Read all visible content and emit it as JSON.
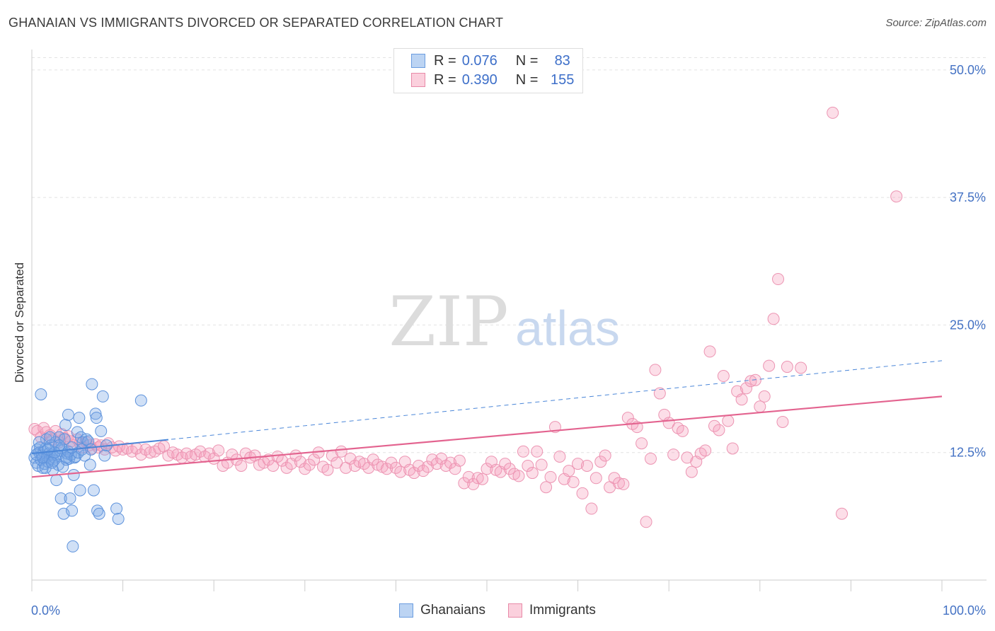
{
  "title": "GHANAIAN VS IMMIGRANTS DIVORCED OR SEPARATED CORRELATION CHART",
  "source": "Source: ZipAtlas.com",
  "watermark": {
    "zip": "ZIP",
    "atlas": "atlas"
  },
  "legend": {
    "rows": [
      {
        "r_label": "R =",
        "r_value": "0.076",
        "n_label": "N =",
        "n_value": "83",
        "color": "#a9c8f0",
        "border": "#6b9de0"
      },
      {
        "r_label": "R =",
        "r_value": "0.390",
        "n_label": "N =",
        "n_value": "155",
        "color": "#f9c3d3",
        "border": "#e88aa8"
      }
    ]
  },
  "bottom_legend": {
    "ghanaians": "Ghanaians",
    "immigrants": "Immigrants"
  },
  "colors": {
    "blue": "#4a86d8",
    "pink": "#e3638f",
    "blue_fill": "rgba(120,165,230,0.35)",
    "pink_fill": "rgba(245,160,190,0.35)",
    "axis_text": "#4472c4"
  },
  "chart_data": {
    "type": "scatter",
    "title": "GHANAIAN VS IMMIGRANTS DIVORCED OR SEPARATED CORRELATION CHART",
    "xlabel": "",
    "ylabel": "Divorced or Separated",
    "xlim": [
      0,
      100
    ],
    "ylim": [
      0,
      52
    ],
    "x_tick_labels": [
      "0.0%",
      "100.0%"
    ],
    "y_ticks": [
      12.5,
      25.0,
      37.5,
      50.0
    ],
    "y_tick_labels": [
      "12.5%",
      "25.0%",
      "37.5%",
      "50.0%"
    ],
    "grid": true,
    "series": [
      {
        "name": "Ghanaians",
        "trend": {
          "x": [
            0,
            100
          ],
          "y": [
            12.4,
            21.5
          ],
          "style": "dashed"
        },
        "points": [
          [
            0.3,
            12.0
          ],
          [
            0.5,
            11.5
          ],
          [
            0.6,
            12.8
          ],
          [
            0.7,
            11.2
          ],
          [
            0.8,
            12.5
          ],
          [
            0.9,
            13.0
          ],
          [
            1.0,
            11.8
          ],
          [
            1.1,
            12.2
          ],
          [
            1.2,
            11.0
          ],
          [
            1.3,
            12.6
          ],
          [
            1.4,
            11.4
          ],
          [
            1.5,
            12.9
          ],
          [
            1.6,
            13.8
          ],
          [
            1.7,
            12.1
          ],
          [
            1.8,
            11.6
          ],
          [
            1.9,
            12.4
          ],
          [
            2.0,
            11.9
          ],
          [
            2.1,
            13.2
          ],
          [
            2.2,
            12.3
          ],
          [
            2.3,
            10.8
          ],
          [
            2.4,
            11.7
          ],
          [
            2.5,
            12.0
          ],
          [
            2.6,
            13.5
          ],
          [
            2.7,
            9.8
          ],
          [
            2.8,
            12.2
          ],
          [
            2.9,
            11.3
          ],
          [
            3.0,
            14.0
          ],
          [
            3.1,
            12.7
          ],
          [
            3.2,
            8.0
          ],
          [
            3.3,
            12.9
          ],
          [
            3.4,
            11.1
          ],
          [
            3.5,
            6.5
          ],
          [
            3.6,
            13.8
          ],
          [
            3.7,
            15.2
          ],
          [
            3.8,
            11.8
          ],
          [
            3.9,
            12.4
          ],
          [
            4.0,
            16.2
          ],
          [
            4.1,
            11.9
          ],
          [
            4.2,
            8.0
          ],
          [
            4.3,
            12.3
          ],
          [
            4.4,
            6.8
          ],
          [
            4.5,
            3.3
          ],
          [
            4.6,
            10.3
          ],
          [
            4.7,
            12.0
          ],
          [
            4.8,
            12.1
          ],
          [
            5.0,
            14.5
          ],
          [
            5.1,
            12.5
          ],
          [
            5.2,
            15.9
          ],
          [
            5.3,
            8.8
          ],
          [
            5.4,
            14.0
          ],
          [
            5.6,
            13.5
          ],
          [
            5.8,
            12.2
          ],
          [
            6.0,
            13.8
          ],
          [
            6.2,
            13.6
          ],
          [
            6.4,
            11.3
          ],
          [
            6.6,
            19.2
          ],
          [
            6.8,
            8.8
          ],
          [
            7.0,
            16.3
          ],
          [
            7.1,
            15.9
          ],
          [
            7.2,
            6.8
          ],
          [
            7.4,
            6.5
          ],
          [
            7.6,
            14.6
          ],
          [
            7.8,
            18.0
          ],
          [
            8.0,
            12.2
          ],
          [
            8.2,
            13.2
          ],
          [
            9.3,
            7.0
          ],
          [
            9.5,
            6.0
          ],
          [
            12.0,
            17.6
          ],
          [
            1.0,
            18.2
          ],
          [
            2.0,
            14.0
          ],
          [
            3.0,
            13.2
          ],
          [
            4.0,
            12.6
          ],
          [
            6.5,
            12.8
          ],
          [
            1.5,
            11.0
          ],
          [
            2.5,
            12.5
          ],
          [
            0.8,
            13.5
          ],
          [
            1.2,
            12.0
          ],
          [
            3.8,
            12.0
          ],
          [
            4.4,
            13.0
          ],
          [
            5.5,
            12.8
          ],
          [
            2.2,
            11.5
          ],
          [
            1.8,
            12.8
          ],
          [
            0.5,
            12.3
          ]
        ]
      },
      {
        "name": "Immigrants",
        "trend": {
          "x": [
            0,
            100
          ],
          "y": [
            10.1,
            18.0
          ],
          "style": "solid"
        },
        "points": [
          [
            0.3,
            14.8
          ],
          [
            0.6,
            14.6
          ],
          [
            1.0,
            14.0
          ],
          [
            1.3,
            14.9
          ],
          [
            1.6,
            14.5
          ],
          [
            2.0,
            14.2
          ],
          [
            2.3,
            13.8
          ],
          [
            2.6,
            14.6
          ],
          [
            3.0,
            13.5
          ],
          [
            3.3,
            14.3
          ],
          [
            3.6,
            13.9
          ],
          [
            4.0,
            14.1
          ],
          [
            4.3,
            13.6
          ],
          [
            4.6,
            13.2
          ],
          [
            5.0,
            13.8
          ],
          [
            5.3,
            13.4
          ],
          [
            5.6,
            13.0
          ],
          [
            6.0,
            13.5
          ],
          [
            6.3,
            13.2
          ],
          [
            6.6,
            12.9
          ],
          [
            7.0,
            13.3
          ],
          [
            7.3,
            13.0
          ],
          [
            7.6,
            13.2
          ],
          [
            8.0,
            12.8
          ],
          [
            8.4,
            13.4
          ],
          [
            8.8,
            13.0
          ],
          [
            9.2,
            12.7
          ],
          [
            9.6,
            13.1
          ],
          [
            10.0,
            12.8
          ],
          [
            10.5,
            12.9
          ],
          [
            11.0,
            12.6
          ],
          [
            11.5,
            12.9
          ],
          [
            12.0,
            12.3
          ],
          [
            12.5,
            12.8
          ],
          [
            13.0,
            12.5
          ],
          [
            13.5,
            12.6
          ],
          [
            14.0,
            12.9
          ],
          [
            14.5,
            13.1
          ],
          [
            15.0,
            12.2
          ],
          [
            15.5,
            12.5
          ],
          [
            16.0,
            12.3
          ],
          [
            16.5,
            12.0
          ],
          [
            17.0,
            12.4
          ],
          [
            17.5,
            12.1
          ],
          [
            18.0,
            12.3
          ],
          [
            18.5,
            12.6
          ],
          [
            19.0,
            12.1
          ],
          [
            19.5,
            12.4
          ],
          [
            20.0,
            11.9
          ],
          [
            20.5,
            12.7
          ],
          [
            21.0,
            11.2
          ],
          [
            21.5,
            11.5
          ],
          [
            22.0,
            12.3
          ],
          [
            22.5,
            11.8
          ],
          [
            23.0,
            11.2
          ],
          [
            23.5,
            12.4
          ],
          [
            24.0,
            12.0
          ],
          [
            24.5,
            12.2
          ],
          [
            25.0,
            11.3
          ],
          [
            25.5,
            11.5
          ],
          [
            26.0,
            11.8
          ],
          [
            26.5,
            11.2
          ],
          [
            27.0,
            12.1
          ],
          [
            27.5,
            11.7
          ],
          [
            28.0,
            11.0
          ],
          [
            28.5,
            11.4
          ],
          [
            29.0,
            12.2
          ],
          [
            29.5,
            11.6
          ],
          [
            30.0,
            10.9
          ],
          [
            30.5,
            11.3
          ],
          [
            31.0,
            11.8
          ],
          [
            31.5,
            12.5
          ],
          [
            32.0,
            11.1
          ],
          [
            32.5,
            10.8
          ],
          [
            33.0,
            12.2
          ],
          [
            33.5,
            11.5
          ],
          [
            34.0,
            12.6
          ],
          [
            34.5,
            11.0
          ],
          [
            35.0,
            11.9
          ],
          [
            35.5,
            11.2
          ],
          [
            36.0,
            11.6
          ],
          [
            36.5,
            11.4
          ],
          [
            37.0,
            11.0
          ],
          [
            37.5,
            11.8
          ],
          [
            38.0,
            11.3
          ],
          [
            38.5,
            11.1
          ],
          [
            39.0,
            10.9
          ],
          [
            39.5,
            11.5
          ],
          [
            40.0,
            11.0
          ],
          [
            40.5,
            10.6
          ],
          [
            41.0,
            11.6
          ],
          [
            41.5,
            10.8
          ],
          [
            42.0,
            10.5
          ],
          [
            42.5,
            11.2
          ],
          [
            43.0,
            10.7
          ],
          [
            43.5,
            11.1
          ],
          [
            44.0,
            11.8
          ],
          [
            44.5,
            11.4
          ],
          [
            45.0,
            11.9
          ],
          [
            45.5,
            11.2
          ],
          [
            46.0,
            11.5
          ],
          [
            46.5,
            10.9
          ],
          [
            47.0,
            11.7
          ],
          [
            47.5,
            9.5
          ],
          [
            48.0,
            10.1
          ],
          [
            48.5,
            9.4
          ],
          [
            49.0,
            10.0
          ],
          [
            49.5,
            9.9
          ],
          [
            50.0,
            10.9
          ],
          [
            50.5,
            11.6
          ],
          [
            51.0,
            10.8
          ],
          [
            51.5,
            10.6
          ],
          [
            52.0,
            11.4
          ],
          [
            52.5,
            10.9
          ],
          [
            53.0,
            10.4
          ],
          [
            53.5,
            10.2
          ],
          [
            54.0,
            12.6
          ],
          [
            54.5,
            11.2
          ],
          [
            55.0,
            10.5
          ],
          [
            55.5,
            12.6
          ],
          [
            56.0,
            11.3
          ],
          [
            56.5,
            9.1
          ],
          [
            57.0,
            10.1
          ],
          [
            57.5,
            15.0
          ],
          [
            58.0,
            12.1
          ],
          [
            58.5,
            9.9
          ],
          [
            59.0,
            10.7
          ],
          [
            59.5,
            9.6
          ],
          [
            60.0,
            11.4
          ],
          [
            60.5,
            8.5
          ],
          [
            61.0,
            11.2
          ],
          [
            61.5,
            7.0
          ],
          [
            62.0,
            10.0
          ],
          [
            62.5,
            11.6
          ],
          [
            63.0,
            12.2
          ],
          [
            63.5,
            9.1
          ],
          [
            64.0,
            10.0
          ],
          [
            64.5,
            9.5
          ],
          [
            65.0,
            9.4
          ],
          [
            65.5,
            15.9
          ],
          [
            66.0,
            15.3
          ],
          [
            66.5,
            15.0
          ],
          [
            67.0,
            13.4
          ],
          [
            67.5,
            5.7
          ],
          [
            68.0,
            11.9
          ],
          [
            68.5,
            20.6
          ],
          [
            69.0,
            18.3
          ],
          [
            69.5,
            16.2
          ],
          [
            70.0,
            15.4
          ],
          [
            70.5,
            12.3
          ],
          [
            71.0,
            14.9
          ],
          [
            71.5,
            14.6
          ],
          [
            72.0,
            12.0
          ],
          [
            72.5,
            10.6
          ],
          [
            73.0,
            11.6
          ],
          [
            73.5,
            12.4
          ],
          [
            74.0,
            12.7
          ],
          [
            74.5,
            22.4
          ],
          [
            75.0,
            15.1
          ],
          [
            75.5,
            14.7
          ],
          [
            76.0,
            20.0
          ],
          [
            76.5,
            15.6
          ],
          [
            77.0,
            12.9
          ],
          [
            77.5,
            18.5
          ],
          [
            78.0,
            17.7
          ],
          [
            78.5,
            18.8
          ],
          [
            79.0,
            19.5
          ],
          [
            79.5,
            19.6
          ],
          [
            80.0,
            17.0
          ],
          [
            80.5,
            18.0
          ],
          [
            81.0,
            21.0
          ],
          [
            81.5,
            25.6
          ],
          [
            82.0,
            29.5
          ],
          [
            82.5,
            15.5
          ],
          [
            83.0,
            20.9
          ],
          [
            84.5,
            20.8
          ],
          [
            88.0,
            45.8
          ],
          [
            95.0,
            37.6
          ],
          [
            89.0,
            6.5
          ]
        ]
      }
    ]
  }
}
